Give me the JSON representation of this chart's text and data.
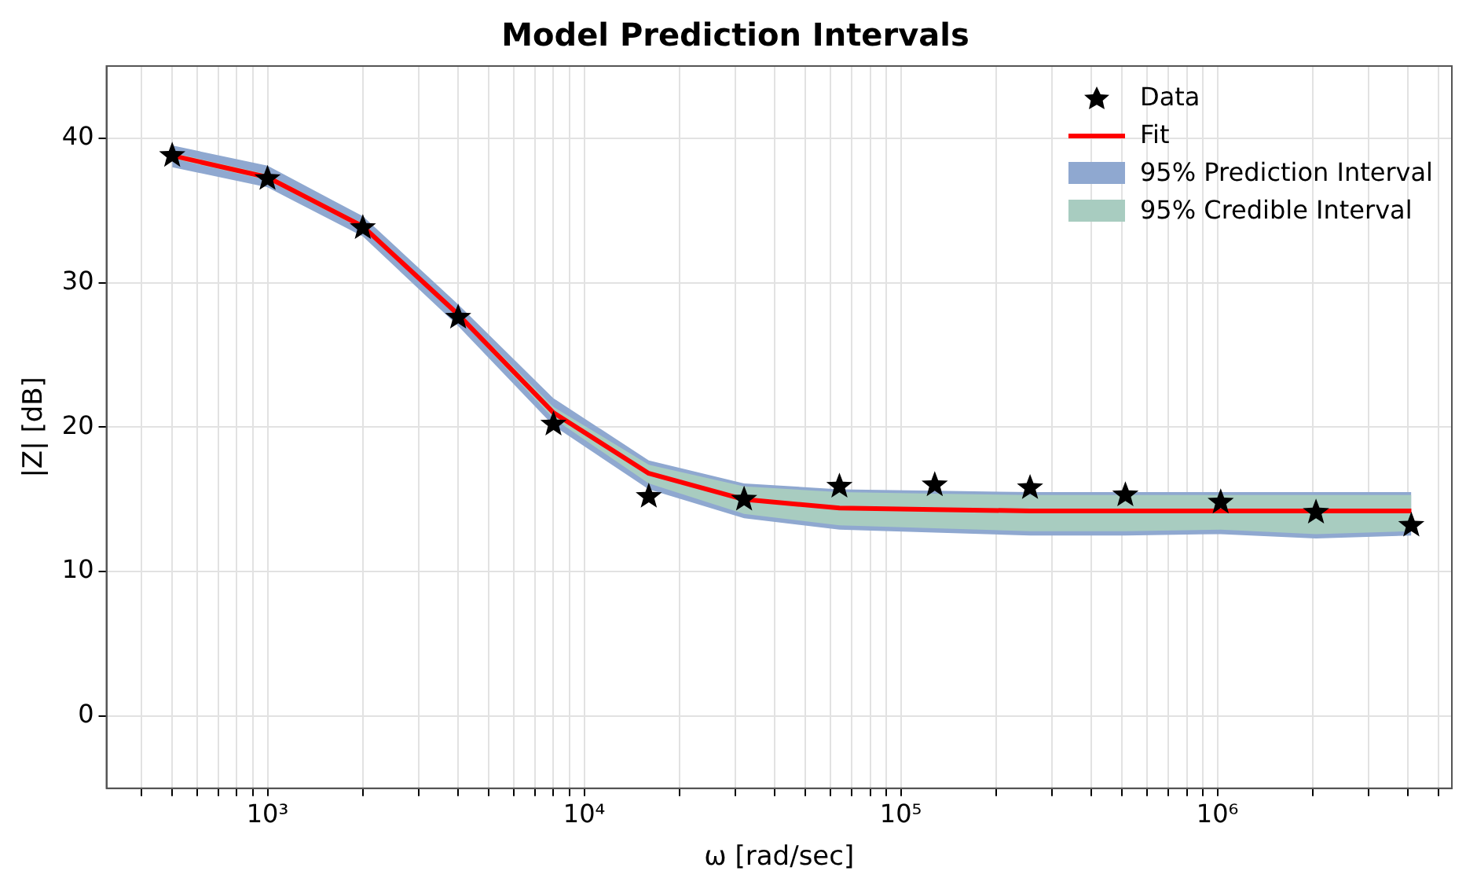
{
  "chart_data": {
    "type": "line",
    "title": "Model Prediction Intervals",
    "xlabel": "ω [rad/sec]",
    "ylabel": "|Z| [dB]",
    "x": [
      500,
      1000,
      2000,
      4000,
      8000,
      16000,
      32000,
      64000,
      128000,
      256000,
      512000,
      1024000,
      2048000,
      4096000
    ],
    "series": [
      {
        "name": "Data",
        "type": "scatter",
        "color": "#000000",
        "marker": "star",
        "values": [
          38.8,
          37.2,
          33.8,
          27.6,
          20.2,
          15.2,
          15.0,
          15.9,
          16.0,
          15.8,
          15.3,
          14.8,
          14.1,
          13.2
        ]
      },
      {
        "name": "Fit",
        "color": "#ff0000",
        "marker": "none",
        "values": [
          38.8,
          37.3,
          33.9,
          27.8,
          21.0,
          16.8,
          15.0,
          14.4,
          14.3,
          14.2,
          14.2,
          14.2,
          14.2,
          14.2
        ]
      },
      {
        "name": "95% Prediction Interval",
        "type": "area",
        "color": "#8fa8d0",
        "values": [
          null,
          null,
          null,
          null,
          null,
          null,
          null,
          null,
          null,
          null,
          null,
          null,
          null,
          null
        ],
        "lower": [
          38.0,
          36.6,
          33.2,
          27.0,
          20.1,
          15.7,
          13.7,
          12.9,
          12.7,
          12.5,
          12.5,
          12.6,
          12.3,
          12.5
        ],
        "upper": [
          39.5,
          38.1,
          34.6,
          28.5,
          22.0,
          17.7,
          16.1,
          15.7,
          15.6,
          15.5,
          15.5,
          15.5,
          15.5,
          15.5
        ]
      },
      {
        "name": "95% Credible Interval",
        "type": "area",
        "color": "#a8ccc0",
        "values": [
          null,
          null,
          null,
          null,
          null,
          null,
          null,
          null,
          null,
          null,
          null,
          null,
          null,
          null
        ],
        "lower": [
          38.6,
          37.1,
          33.7,
          27.6,
          20.6,
          16.1,
          14.0,
          13.2,
          13.0,
          12.8,
          12.8,
          12.9,
          12.6,
          12.8
        ],
        "upper": [
          39.0,
          37.5,
          34.1,
          28.0,
          21.4,
          17.4,
          15.9,
          15.5,
          15.4,
          15.3,
          15.3,
          15.3,
          15.3,
          15.3
        ]
      }
    ],
    "log": "x",
    "grid": true,
    "legend": "top right",
    "xlim": [
      310,
      5500000
    ],
    "ylim": [
      -5,
      45
    ],
    "yticks": [
      0,
      10,
      20,
      30,
      40
    ],
    "xticks": [
      {
        "value": 400,
        "label": null
      },
      {
        "value": 500,
        "label": null
      },
      {
        "value": 600,
        "label": null
      },
      {
        "value": 700,
        "label": null
      },
      {
        "value": 800,
        "label": null
      },
      {
        "value": 900,
        "label": null
      },
      {
        "value": 1000,
        "label": "10³"
      },
      {
        "value": 2000,
        "label": null
      },
      {
        "value": 3000,
        "label": null
      },
      {
        "value": 4000,
        "label": null
      },
      {
        "value": 5000,
        "label": null
      },
      {
        "value": 6000,
        "label": null
      },
      {
        "value": 7000,
        "label": null
      },
      {
        "value": 8000,
        "label": null
      },
      {
        "value": 9000,
        "label": null
      },
      {
        "value": 10000,
        "label": "10⁴"
      },
      {
        "value": 20000,
        "label": null
      },
      {
        "value": 30000,
        "label": null
      },
      {
        "value": 40000,
        "label": null
      },
      {
        "value": 50000,
        "label": null
      },
      {
        "value": 60000,
        "label": null
      },
      {
        "value": 70000,
        "label": null
      },
      {
        "value": 80000,
        "label": null
      },
      {
        "value": 90000,
        "label": null
      },
      {
        "value": 100000,
        "label": "10⁵"
      },
      {
        "value": 200000,
        "label": null
      },
      {
        "value": 300000,
        "label": null
      },
      {
        "value": 400000,
        "label": null
      },
      {
        "value": 500000,
        "label": null
      },
      {
        "value": 600000,
        "label": null
      },
      {
        "value": 700000,
        "label": null
      },
      {
        "value": 800000,
        "label": null
      },
      {
        "value": 900000,
        "label": null
      },
      {
        "value": 1000000,
        "label": "10⁶"
      },
      {
        "value": 2000000,
        "label": null
      },
      {
        "value": 3000000,
        "label": null
      },
      {
        "value": 4000000,
        "label": null
      },
      {
        "value": 5000000,
        "label": null
      }
    ]
  }
}
